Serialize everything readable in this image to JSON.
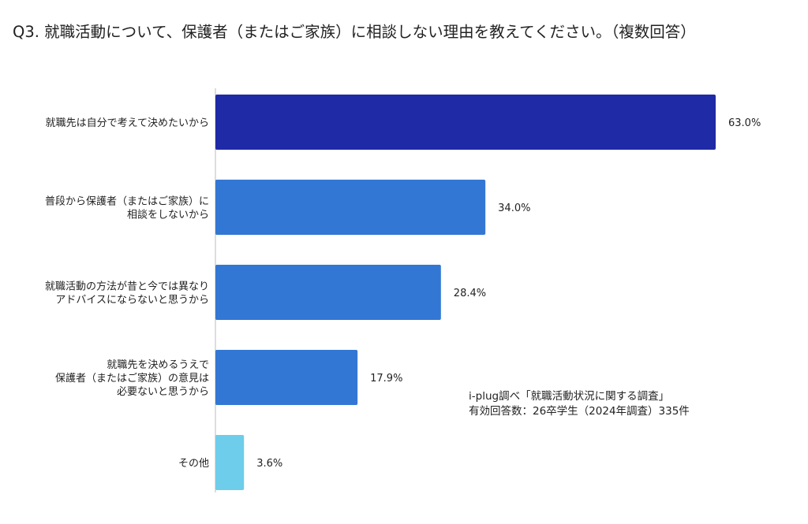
{
  "chart_data": {
    "type": "bar",
    "orientation": "horizontal",
    "title": "Q3. 就職活動について、保護者（またはご家族）に相談しない理由を教えてください。（複数回答）",
    "categories": [
      [
        "就職先は自分で考えて決めたいから"
      ],
      [
        "普段から保護者（またはご家族）に",
        "相談をしないから"
      ],
      [
        "就職活動の方法が昔と今では異なり",
        "アドバイスにならないと思うから"
      ],
      [
        "就職先を決めるうえで",
        "保護者（またはご家族）の意見は",
        "必要ないと思うから"
      ],
      [
        "その他"
      ]
    ],
    "values": [
      63.0,
      34.0,
      28.4,
      17.9,
      3.6
    ],
    "value_labels": [
      "63.0%",
      "34.0%",
      "28.4%",
      "17.9%",
      "3.6%"
    ],
    "unit": "%",
    "xlim": [
      0,
      63.0
    ],
    "grid": false,
    "colors": [
      "#1f2aa6",
      "#3377d4",
      "#3377d4",
      "#3377d4",
      "#6ecdea"
    ]
  },
  "source_note": {
    "line1": "i-plug調べ「就職活動状況に関する調査」",
    "line2": "有効回答数：26卒学生（2024年調査）335件"
  },
  "axis_color": "#bbbbbb"
}
